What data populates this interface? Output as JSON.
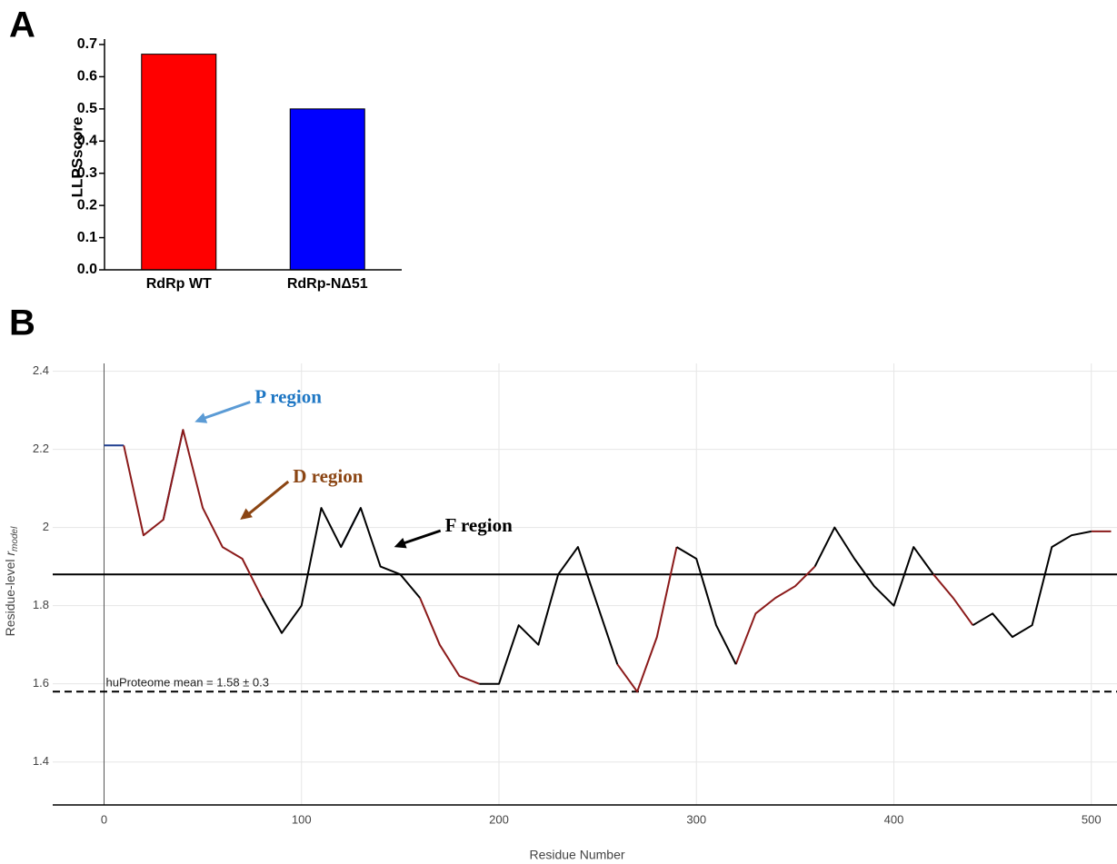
{
  "chart_data": [
    {
      "type": "bar",
      "panel_label": "A",
      "ylabel": "LLPSscore",
      "categories": [
        "RdRp WT",
        "RdRp-NΔ51"
      ],
      "values": [
        0.67,
        0.5
      ],
      "colors": [
        "#ff0000",
        "#0000ff"
      ],
      "ylim": [
        0,
        0.7
      ],
      "yticks": [
        {
          "value": 0,
          "label": "0.0"
        },
        0.1,
        0.2,
        0.3,
        0.4,
        0.5,
        0.6,
        0.7
      ]
    },
    {
      "type": "line",
      "panel_label": "B",
      "xlabel": "Residue Number",
      "ylabel": "Residue-level",
      "ylabel_var": "r",
      "ylabel_sub": "model",
      "x": [
        0,
        10,
        20,
        30,
        40,
        50,
        60,
        70,
        80,
        90,
        100,
        110,
        120,
        130,
        140,
        150,
        160,
        170,
        180,
        190,
        200,
        210,
        220,
        230,
        240,
        250,
        260,
        270,
        280,
        290,
        300,
        310,
        320,
        330,
        340,
        350,
        360,
        370,
        380,
        390,
        400,
        410,
        420,
        430,
        440,
        450,
        460,
        470,
        480,
        490,
        500,
        510
      ],
      "series": [
        {
          "color": "#1f3f8f",
          "values": [
            2.21,
            2.21,
            null,
            2.02,
            2.25,
            null,
            null,
            null,
            null,
            null,
            null,
            null,
            1.95,
            2.05,
            null,
            null,
            null,
            null,
            null,
            null,
            null,
            null,
            null,
            null,
            null,
            null,
            null,
            null,
            null,
            null,
            null,
            null,
            null,
            null,
            null,
            null,
            null,
            null,
            null,
            null,
            null,
            null,
            null,
            null,
            null,
            null,
            null,
            null,
            null,
            null,
            null,
            null
          ]
        },
        {
          "color": "#8b1a1a",
          "values": [
            null,
            2.21,
            1.98,
            2.02,
            2.25,
            2.05,
            1.95,
            1.92,
            1.82,
            null,
            null,
            null,
            null,
            null,
            null,
            null,
            1.82,
            1.7,
            1.62,
            1.6,
            null,
            null,
            null,
            null,
            null,
            null,
            1.65,
            1.58,
            1.72,
            1.95,
            null,
            null,
            1.65,
            1.78,
            1.82,
            1.85,
            1.9,
            null,
            null,
            null,
            null,
            null,
            1.88,
            1.82,
            1.75,
            null,
            null,
            null,
            null,
            null,
            1.99,
            1.99
          ]
        },
        {
          "color": "#000000",
          "values": [
            null,
            null,
            null,
            null,
            null,
            null,
            null,
            null,
            1.82,
            1.73,
            1.8,
            2.05,
            1.95,
            2.05,
            1.9,
            1.88,
            1.82,
            null,
            null,
            1.6,
            1.6,
            1.75,
            1.7,
            1.88,
            1.95,
            1.8,
            1.65,
            null,
            null,
            1.95,
            1.92,
            1.75,
            1.65,
            null,
            null,
            null,
            1.9,
            2.0,
            1.92,
            1.85,
            1.8,
            1.95,
            1.88,
            null,
            1.75,
            1.78,
            1.72,
            1.75,
            1.95,
            1.98,
            1.99,
            null
          ]
        }
      ],
      "hlines": [
        {
          "value": 1.88,
          "style": "solid"
        },
        {
          "value": 1.58,
          "style": "dashed",
          "label": "huProteome mean = 1.58 ± 0.3"
        }
      ],
      "annotations": [
        {
          "text": "P region",
          "x": 45,
          "y": 2.27,
          "color": "#1f77c4",
          "arrow_color": "#5b9bd5"
        },
        {
          "text": "D region",
          "x": 68,
          "y": 2.02,
          "color": "#8b4513",
          "arrow_color": "#8b4513"
        },
        {
          "text": "F region",
          "x": 146,
          "y": 1.95,
          "color": "#000000",
          "arrow_color": "#000000"
        }
      ],
      "xlim": [
        -26,
        513
      ],
      "ylim": [
        1.29,
        2.42
      ],
      "xticks": [
        0,
        100,
        200,
        300,
        400,
        500
      ],
      "yticks": [
        1.4,
        1.6,
        1.8,
        2,
        2.2,
        2.4
      ],
      "grid": true
    }
  ]
}
